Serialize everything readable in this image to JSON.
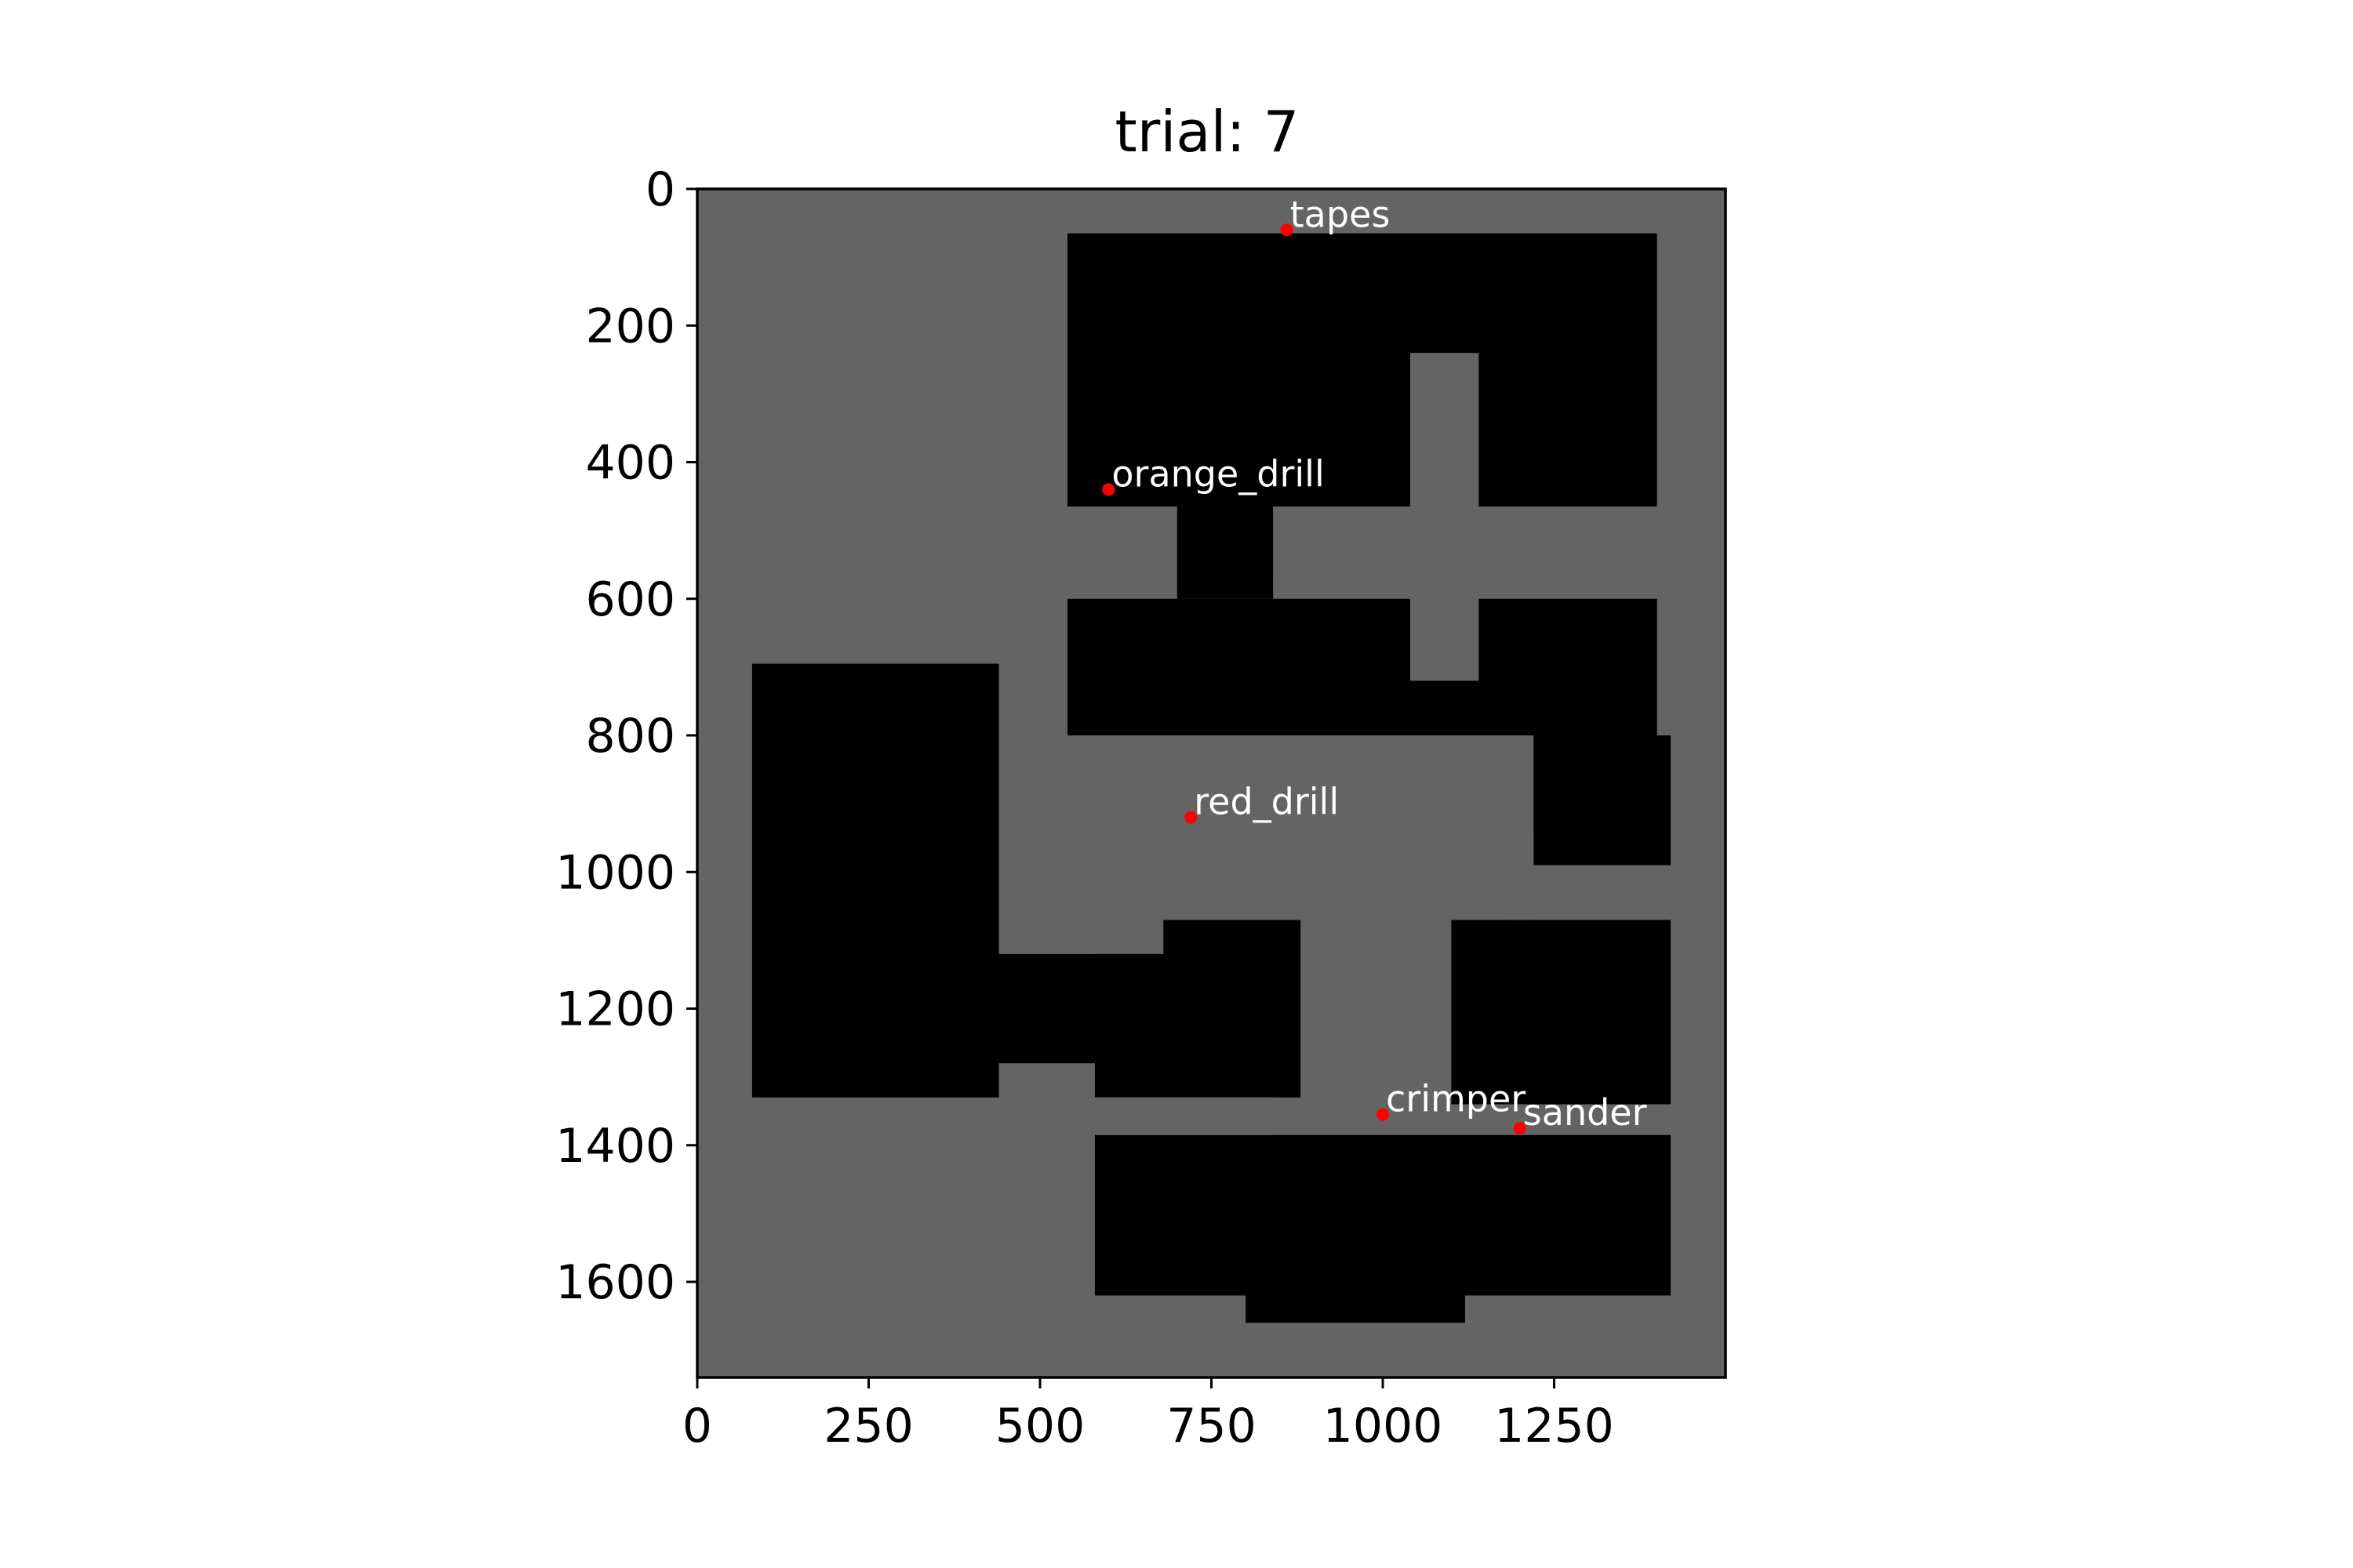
{
  "title": "trial: 7",
  "map": {
    "x_range": [
      0,
      1500
    ],
    "y_range": [
      0,
      1740
    ],
    "x_ticks": [
      0,
      250,
      500,
      750,
      1000,
      1250
    ],
    "y_ticks": [
      0,
      200,
      400,
      600,
      800,
      1000,
      1200,
      1400,
      1600
    ],
    "colors": {
      "free": "#000000",
      "occupied": "#646464",
      "marker": "#ff0000",
      "label": "#ffffff"
    },
    "free_regions": [
      [
        540,
        65,
        1400,
        465
      ],
      [
        700,
        465,
        840,
        600
      ],
      [
        540,
        600,
        1400,
        800
      ],
      [
        1220,
        800,
        1420,
        990
      ],
      [
        80,
        695,
        440,
        1330
      ],
      [
        440,
        1120,
        580,
        1280
      ],
      [
        580,
        1070,
        880,
        1330
      ],
      [
        1100,
        1070,
        1420,
        1340
      ],
      [
        580,
        1385,
        1420,
        1620
      ],
      [
        800,
        1620,
        1120,
        1660
      ]
    ],
    "occupied_regions": [
      [
        1040,
        240,
        1140,
        720
      ],
      [
        840,
        465,
        1040,
        575
      ],
      [
        440,
        800,
        540,
        1120
      ],
      [
        540,
        850,
        680,
        1120
      ],
      [
        680,
        940,
        1220,
        1070
      ],
      [
        960,
        1070,
        1040,
        1380
      ],
      [
        580,
        1330,
        840,
        1385
      ],
      [
        1180,
        990,
        1420,
        1070
      ]
    ],
    "objects": [
      {
        "label": "tapes",
        "x": 860,
        "y": 60
      },
      {
        "label": "orange_drill",
        "x": 600,
        "y": 440
      },
      {
        "label": "red_drill",
        "x": 720,
        "y": 920
      },
      {
        "label": "crimper",
        "x": 1000,
        "y": 1355
      },
      {
        "label": "sander",
        "x": 1200,
        "y": 1375
      }
    ]
  }
}
